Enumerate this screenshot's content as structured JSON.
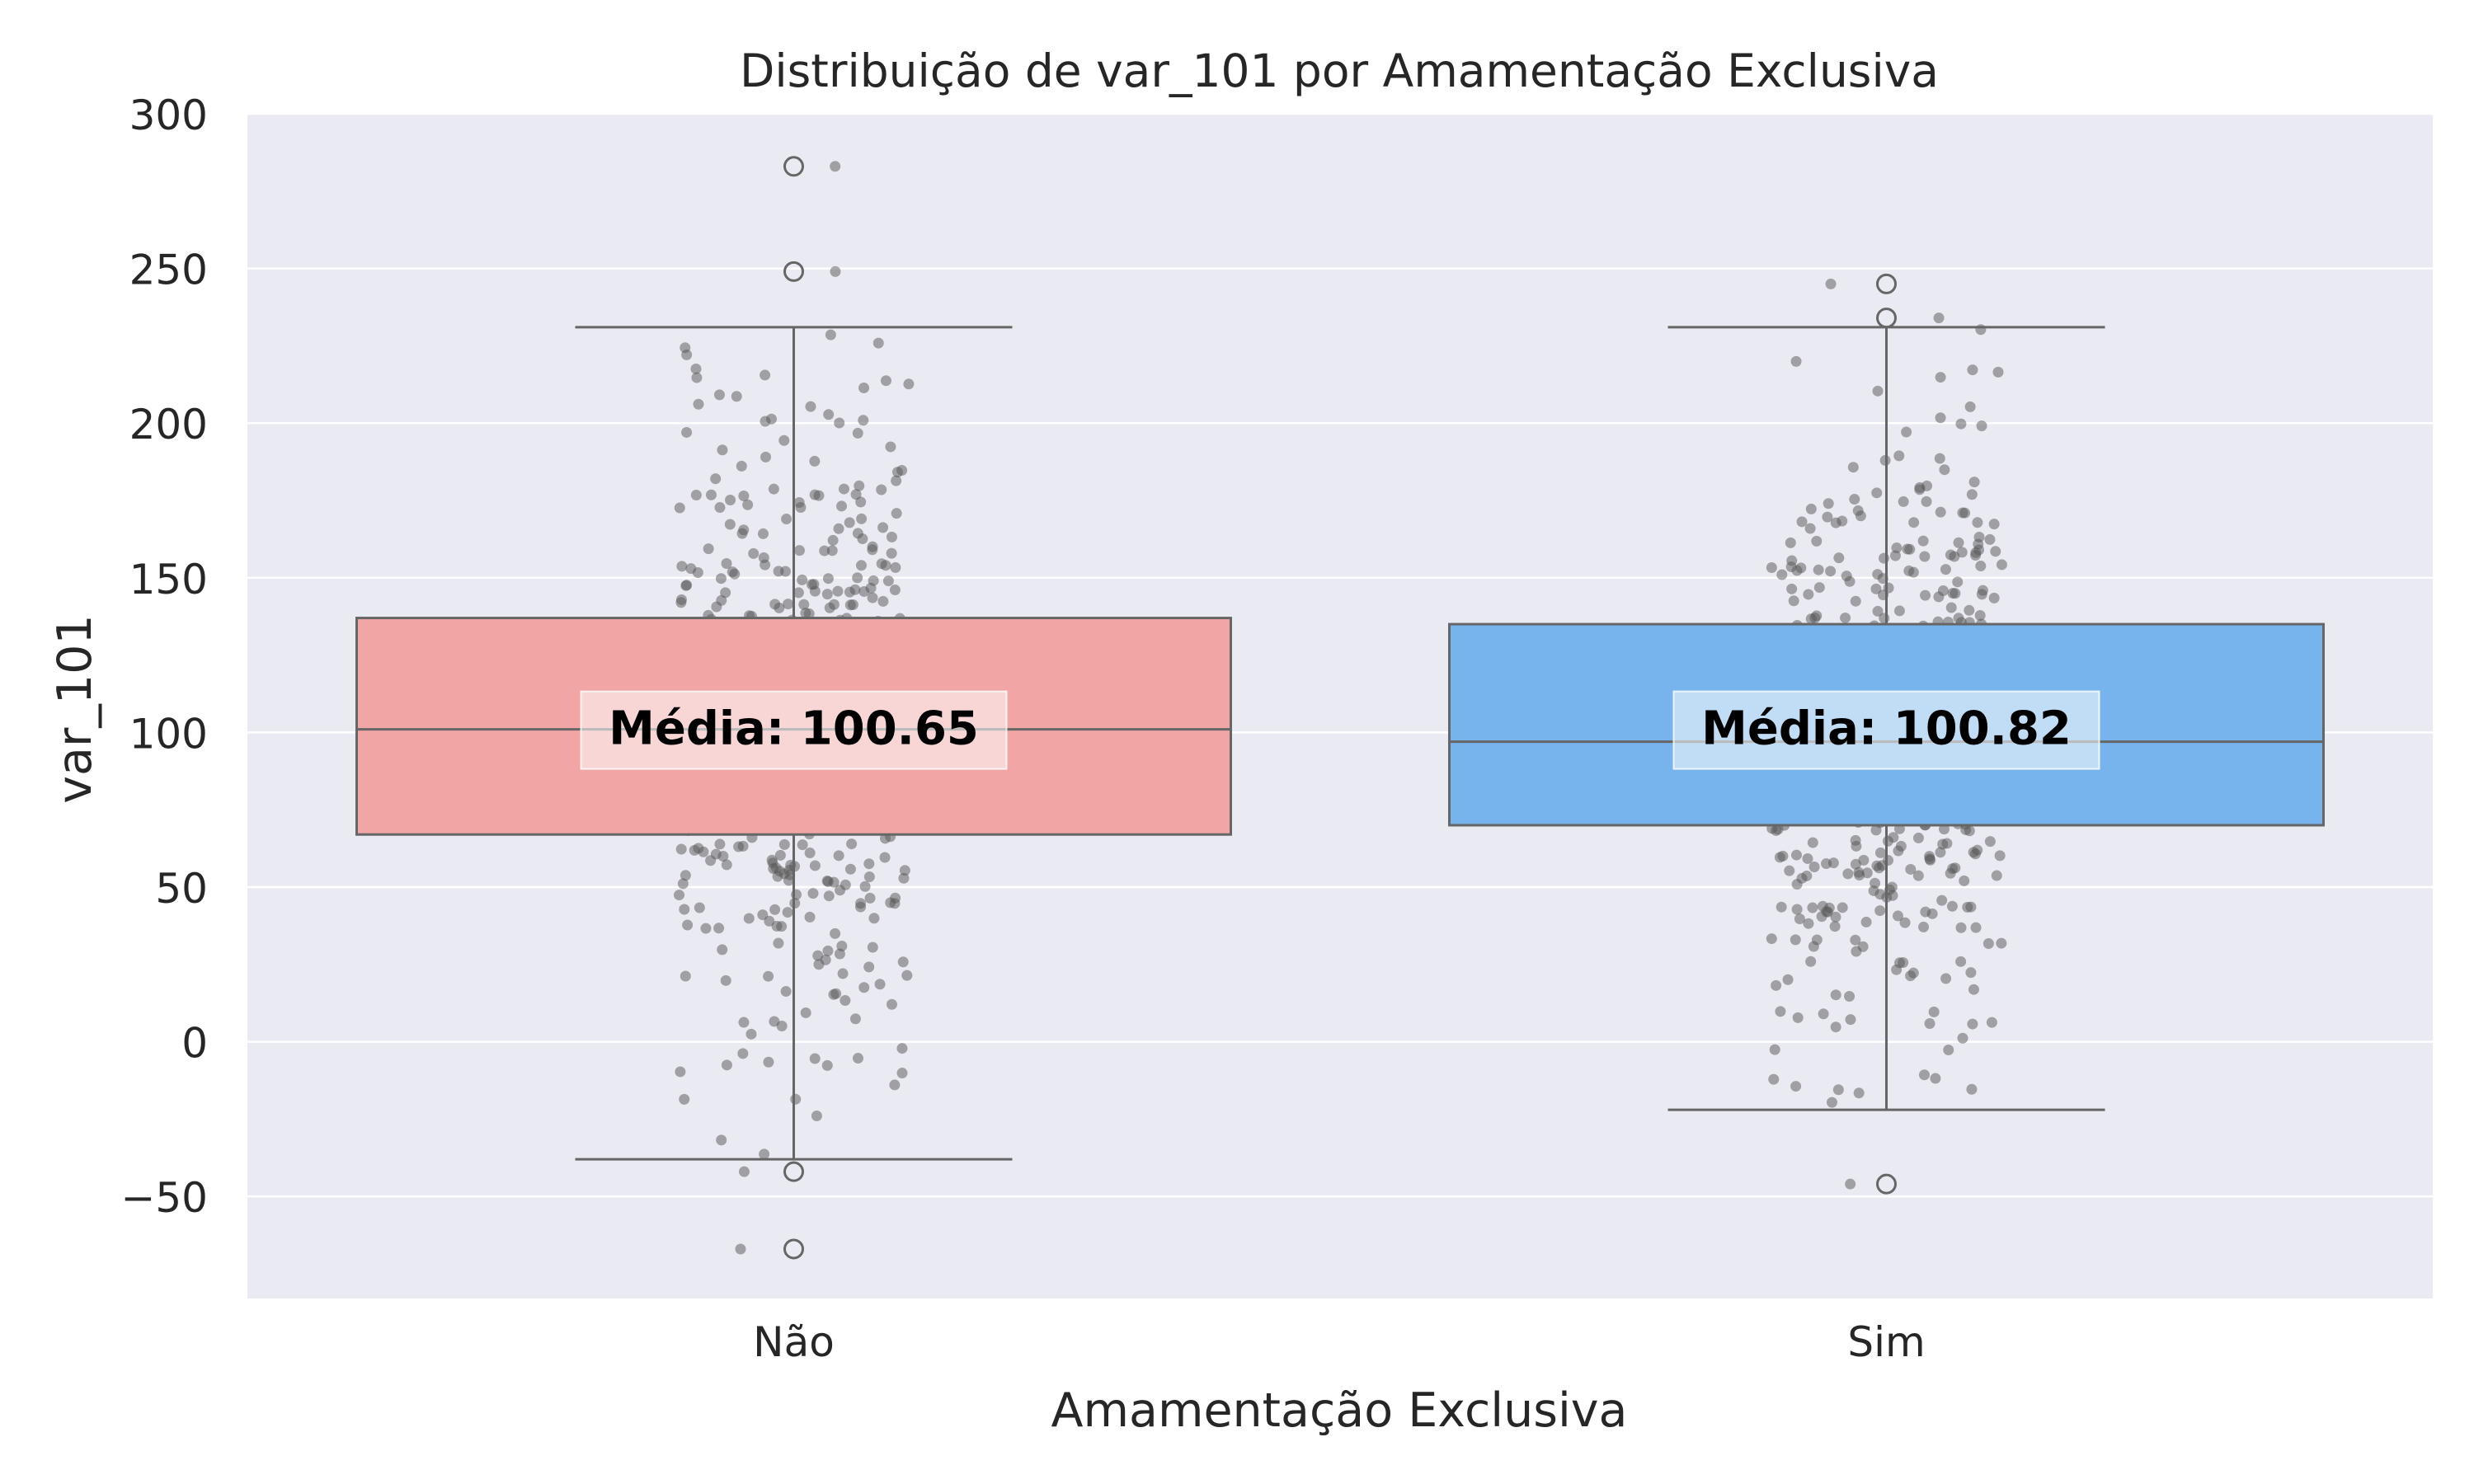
{
  "chart_data": {
    "type": "box",
    "title": "Distribuição de var_101 por Amamentação Exclusiva",
    "xlabel": "Amamentação Exclusiva",
    "ylabel": "var_101",
    "ylim": [
      -83,
      300
    ],
    "yticks": [
      300,
      250,
      200,
      150,
      100,
      50,
      0,
      -50
    ],
    "ytick_labels": [
      "300",
      "250",
      "200",
      "150",
      "100",
      "50",
      "0",
      "−50"
    ],
    "grid": true,
    "categories": [
      "Não",
      "Sim"
    ],
    "boxes": [
      {
        "category": "Não",
        "q1": 67,
        "median": 101,
        "q3": 137,
        "whisker_low": -38,
        "whisker_high": 231,
        "mean_label": "Média: 100.65",
        "outliers": [
          283,
          249,
          -42,
          -67
        ],
        "color": "#f2a5a5"
      },
      {
        "category": "Sim",
        "q1": 70,
        "median": 97,
        "q3": 135,
        "whisker_low": -22,
        "whisker_high": 231,
        "mean_label": "Média: 100.82",
        "outliers": [
          245,
          234,
          -46
        ],
        "color": "#77b3ec"
      }
    ]
  },
  "colors": {
    "background": "#eaeaf2",
    "grid": "#ffffff",
    "box_line": "#666666",
    "jitter": "#555555"
  }
}
